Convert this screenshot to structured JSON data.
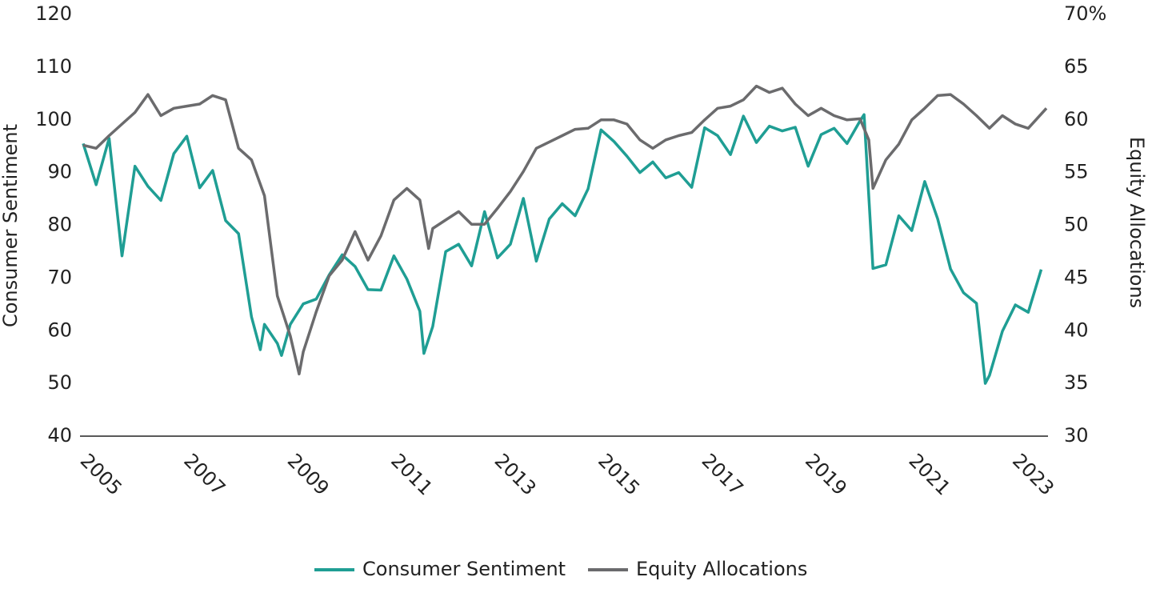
{
  "chart_data": {
    "type": "line",
    "y_label": "Consumer Sentiment",
    "y2_label": "Equity Allocations",
    "xlim": [
      2005,
      2023.6
    ],
    "xticks": [
      2005,
      2007,
      2009,
      2011,
      2013,
      2015,
      2017,
      2019,
      2021,
      2023
    ],
    "ylim": [
      40,
      120
    ],
    "yticks": [
      40,
      50,
      60,
      70,
      80,
      90,
      100,
      110,
      120
    ],
    "y2lim": [
      30,
      70
    ],
    "y2ticks": [
      30,
      35,
      40,
      45,
      50,
      55,
      60,
      65,
      {
        "value": 70,
        "label": "70%"
      }
    ],
    "legend": "bottom",
    "series": [
      {
        "name": "Consumer Sentiment",
        "color": "#1f9e94",
        "x": [
          2005,
          2005.25,
          2005.5,
          2005.75,
          2006,
          2006.25,
          2006.5,
          2006.75,
          2007,
          2007.25,
          2007.5,
          2007.75,
          2008,
          2008.25,
          2008.42,
          2008.5,
          2008.75,
          2008.83,
          2009,
          2009.25,
          2009.5,
          2009.75,
          2010,
          2010.25,
          2010.5,
          2010.75,
          2011,
          2011.25,
          2011.5,
          2011.58,
          2011.75,
          2012,
          2012.25,
          2012.5,
          2012.75,
          2013,
          2013.25,
          2013.5,
          2013.75,
          2014,
          2014.25,
          2014.5,
          2014.75,
          2015,
          2015.25,
          2015.5,
          2015.75,
          2016,
          2016.25,
          2016.5,
          2016.75,
          2017,
          2017.25,
          2017.5,
          2017.75,
          2018,
          2018.25,
          2018.5,
          2018.75,
          2019,
          2019.25,
          2019.5,
          2019.75,
          2020,
          2020.08,
          2020.25,
          2020.5,
          2020.75,
          2021,
          2021.25,
          2021.5,
          2021.75,
          2022,
          2022.25,
          2022.42,
          2022.5,
          2022.75,
          2023,
          2023.25,
          2023.5
        ],
        "values": [
          95.5,
          87.7,
          96.5,
          74.2,
          91.2,
          87.4,
          84.7,
          93.6,
          96.9,
          87.1,
          90.4,
          80.9,
          78.4,
          62.6,
          56.4,
          61.2,
          57.6,
          55.3,
          61.2,
          65.1,
          66.0,
          70.6,
          74.4,
          72.2,
          67.8,
          67.7,
          74.2,
          69.8,
          63.7,
          55.7,
          60.8,
          75.0,
          76.4,
          72.3,
          82.6,
          73.8,
          76.4,
          85.1,
          73.2,
          81.2,
          84.1,
          81.8,
          86.9,
          98.1,
          95.9,
          93.1,
          90.0,
          92.0,
          89.0,
          90.0,
          87.2,
          98.5,
          97.0,
          93.4,
          100.7,
          95.7,
          98.8,
          97.9,
          98.6,
          91.2,
          97.2,
          98.4,
          95.5,
          99.8,
          101.0,
          71.8,
          72.5,
          81.8,
          79.0,
          88.3,
          81.2,
          71.7,
          67.2,
          65.2,
          50.0,
          51.5,
          59.9,
          64.9,
          63.5,
          71.6
        ]
      },
      {
        "name": "Equity Allocations",
        "color": "#6b6b6d",
        "axis": "y2",
        "x": [
          2005,
          2005.25,
          2005.5,
          2005.75,
          2006,
          2006.25,
          2006.5,
          2006.75,
          2007,
          2007.25,
          2007.5,
          2007.75,
          2008,
          2008.25,
          2008.5,
          2008.75,
          2009,
          2009.17,
          2009.25,
          2009.5,
          2009.75,
          2010,
          2010.25,
          2010.5,
          2010.75,
          2011,
          2011.25,
          2011.5,
          2011.67,
          2011.75,
          2012,
          2012.25,
          2012.5,
          2012.75,
          2013,
          2013.25,
          2013.5,
          2013.75,
          2014,
          2014.25,
          2014.5,
          2014.75,
          2015,
          2015.25,
          2015.5,
          2015.75,
          2016,
          2016.25,
          2016.5,
          2016.75,
          2017,
          2017.25,
          2017.5,
          2017.75,
          2018,
          2018.25,
          2018.5,
          2018.75,
          2019,
          2019.25,
          2019.5,
          2019.75,
          2020,
          2020.17,
          2020.25,
          2020.5,
          2020.75,
          2021,
          2021.25,
          2021.5,
          2021.75,
          2022,
          2022.25,
          2022.5,
          2022.75,
          2023,
          2023.25,
          2023.6
        ],
        "values": [
          57.6,
          57.3,
          58.5,
          59.6,
          60.7,
          62.4,
          60.4,
          61.1,
          61.3,
          61.5,
          62.3,
          61.9,
          57.3,
          56.2,
          52.8,
          43.3,
          39.5,
          35.9,
          38.0,
          41.8,
          45.2,
          46.7,
          49.4,
          46.7,
          49.0,
          52.4,
          53.5,
          52.4,
          47.8,
          49.7,
          50.5,
          51.3,
          50.1,
          50.1,
          51.6,
          53.2,
          55.1,
          57.3,
          57.9,
          58.5,
          59.1,
          59.2,
          60.0,
          60.0,
          59.6,
          58.1,
          57.3,
          58.1,
          58.5,
          58.8,
          60.0,
          61.1,
          61.3,
          61.9,
          63.2,
          62.6,
          63.0,
          61.5,
          60.4,
          61.1,
          60.4,
          60.0,
          60.1,
          58.1,
          53.5,
          56.2,
          57.7,
          60.0,
          61.1,
          62.3,
          62.4,
          61.5,
          60.4,
          59.2,
          60.4,
          59.6,
          59.2,
          61.1
        ]
      }
    ]
  }
}
